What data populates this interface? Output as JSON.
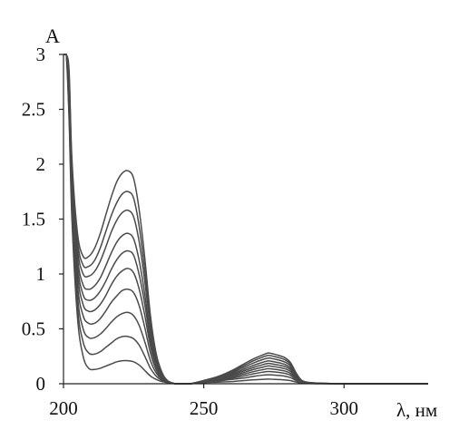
{
  "chart_data": {
    "type": "line",
    "title": "",
    "xlabel": "λ, нм",
    "ylabel": "A",
    "xlim": [
      200,
      330
    ],
    "ylim": [
      0,
      3
    ],
    "x_ticks": [
      {
        "value": 200,
        "label": "200"
      },
      {
        "value": 250,
        "label": "250"
      },
      {
        "value": 300,
        "label": "300"
      }
    ],
    "y_ticks": [
      {
        "value": 0,
        "label": "0"
      },
      {
        "value": 0.5,
        "label": "0.5"
      },
      {
        "value": 1,
        "label": "1"
      },
      {
        "value": 1.5,
        "label": "1.5"
      },
      {
        "value": 2,
        "label": "2"
      },
      {
        "value": 2.5,
        "label": "2.5"
      },
      {
        "value": 3,
        "label": "3"
      }
    ],
    "grid": false,
    "legend": "none",
    "line_color": "#4a4a4a",
    "x": [
      200,
      201,
      202,
      203,
      205,
      207,
      209,
      211,
      213,
      215,
      217,
      219,
      221,
      223,
      225,
      227,
      229,
      231,
      233,
      235,
      237,
      240,
      245,
      250,
      255,
      260,
      265,
      268,
      271,
      273,
      275,
      277,
      279,
      281,
      283,
      285,
      288,
      292,
      300,
      310,
      320,
      330
    ],
    "series": [
      {
        "values": [
          3.0,
          3.0,
          2.4,
          1.5,
          0.6,
          0.25,
          0.14,
          0.13,
          0.14,
          0.16,
          0.18,
          0.2,
          0.21,
          0.21,
          0.2,
          0.17,
          0.12,
          0.07,
          0.04,
          0.02,
          0.01,
          0.0,
          0.0,
          0.01,
          0.015,
          0.02,
          0.03,
          0.036,
          0.04,
          0.042,
          0.04,
          0.038,
          0.034,
          0.028,
          0.015,
          0.005,
          0.002,
          0.001,
          0.0,
          0.0,
          0.0,
          0.0
        ]
      },
      {
        "values": [
          3.0,
          3.0,
          2.45,
          1.6,
          0.7,
          0.38,
          0.28,
          0.27,
          0.29,
          0.33,
          0.37,
          0.41,
          0.43,
          0.43,
          0.41,
          0.35,
          0.25,
          0.14,
          0.07,
          0.03,
          0.012,
          0.0,
          0.0,
          0.012,
          0.025,
          0.04,
          0.055,
          0.068,
          0.078,
          0.082,
          0.079,
          0.075,
          0.068,
          0.055,
          0.028,
          0.009,
          0.003,
          0.001,
          0.0,
          0.0,
          0.0,
          0.0
        ]
      },
      {
        "values": [
          3.0,
          3.0,
          2.5,
          1.7,
          0.8,
          0.5,
          0.42,
          0.42,
          0.45,
          0.5,
          0.56,
          0.61,
          0.64,
          0.65,
          0.62,
          0.53,
          0.38,
          0.21,
          0.1,
          0.04,
          0.014,
          0.0,
          0.0,
          0.014,
          0.03,
          0.05,
          0.075,
          0.092,
          0.105,
          0.112,
          0.108,
          0.102,
          0.094,
          0.076,
          0.038,
          0.012,
          0.004,
          0.002,
          0.0,
          0.0,
          0.0,
          0.0
        ]
      },
      {
        "values": [
          3.0,
          3.0,
          2.55,
          1.75,
          0.9,
          0.62,
          0.55,
          0.55,
          0.59,
          0.66,
          0.74,
          0.8,
          0.85,
          0.86,
          0.83,
          0.71,
          0.51,
          0.28,
          0.13,
          0.05,
          0.016,
          0.0,
          0.0,
          0.016,
          0.035,
          0.06,
          0.092,
          0.112,
          0.128,
          0.137,
          0.132,
          0.125,
          0.115,
          0.093,
          0.047,
          0.015,
          0.005,
          0.002,
          0.0,
          0.0,
          0.0,
          0.0
        ]
      },
      {
        "values": [
          3.0,
          3.0,
          2.6,
          1.8,
          1.0,
          0.72,
          0.66,
          0.67,
          0.72,
          0.8,
          0.9,
          0.98,
          1.03,
          1.05,
          1.01,
          0.86,
          0.62,
          0.34,
          0.16,
          0.06,
          0.018,
          0.0,
          0.0,
          0.018,
          0.04,
          0.07,
          0.108,
          0.132,
          0.151,
          0.162,
          0.156,
          0.148,
          0.136,
          0.11,
          0.055,
          0.018,
          0.006,
          0.002,
          0.0,
          0.0,
          0.0,
          0.0
        ]
      },
      {
        "values": [
          3.0,
          3.0,
          2.65,
          1.85,
          1.08,
          0.81,
          0.76,
          0.78,
          0.84,
          0.93,
          1.04,
          1.13,
          1.19,
          1.21,
          1.17,
          0.99,
          0.72,
          0.39,
          0.18,
          0.07,
          0.02,
          0.0,
          0.0,
          0.02,
          0.045,
          0.08,
          0.124,
          0.151,
          0.173,
          0.185,
          0.178,
          0.169,
          0.156,
          0.126,
          0.063,
          0.02,
          0.007,
          0.003,
          0.0,
          0.0,
          0.0,
          0.0
        ]
      },
      {
        "values": [
          3.0,
          3.0,
          2.7,
          1.9,
          1.15,
          0.9,
          0.86,
          0.89,
          0.96,
          1.07,
          1.19,
          1.29,
          1.35,
          1.37,
          1.32,
          1.12,
          0.81,
          0.44,
          0.2,
          0.08,
          0.022,
          0.0,
          0.0,
          0.022,
          0.05,
          0.09,
          0.14,
          0.17,
          0.195,
          0.208,
          0.2,
          0.19,
          0.175,
          0.142,
          0.071,
          0.023,
          0.008,
          0.003,
          0.0,
          0.0,
          0.0,
          0.0
        ]
      },
      {
        "values": [
          3.0,
          3.0,
          2.75,
          1.95,
          1.23,
          1.0,
          0.98,
          1.02,
          1.11,
          1.24,
          1.38,
          1.49,
          1.56,
          1.58,
          1.52,
          1.29,
          0.93,
          0.51,
          0.23,
          0.09,
          0.025,
          0.0,
          0.0,
          0.025,
          0.055,
          0.1,
          0.158,
          0.192,
          0.22,
          0.234,
          0.226,
          0.214,
          0.197,
          0.16,
          0.08,
          0.026,
          0.009,
          0.003,
          0.0,
          0.0,
          0.0,
          0.0
        ]
      },
      {
        "values": [
          3.0,
          3.0,
          2.8,
          2.0,
          1.3,
          1.08,
          1.07,
          1.12,
          1.23,
          1.38,
          1.53,
          1.65,
          1.73,
          1.75,
          1.69,
          1.43,
          1.03,
          0.56,
          0.25,
          0.1,
          0.028,
          0.0,
          0.0,
          0.028,
          0.06,
          0.11,
          0.174,
          0.212,
          0.242,
          0.258,
          0.249,
          0.236,
          0.217,
          0.176,
          0.088,
          0.028,
          0.01,
          0.004,
          0.0,
          0.0,
          0.0,
          0.0
        ]
      },
      {
        "values": [
          3.0,
          3.0,
          2.85,
          2.05,
          1.37,
          1.16,
          1.16,
          1.23,
          1.36,
          1.53,
          1.7,
          1.84,
          1.92,
          1.94,
          1.87,
          1.58,
          1.14,
          0.62,
          0.28,
          0.11,
          0.03,
          0.0,
          0.0,
          0.03,
          0.065,
          0.12,
          0.19,
          0.23,
          0.262,
          0.28,
          0.27,
          0.256,
          0.236,
          0.19,
          0.095,
          0.03,
          0.01,
          0.004,
          0.0,
          0.0,
          0.0,
          0.0
        ]
      }
    ]
  }
}
